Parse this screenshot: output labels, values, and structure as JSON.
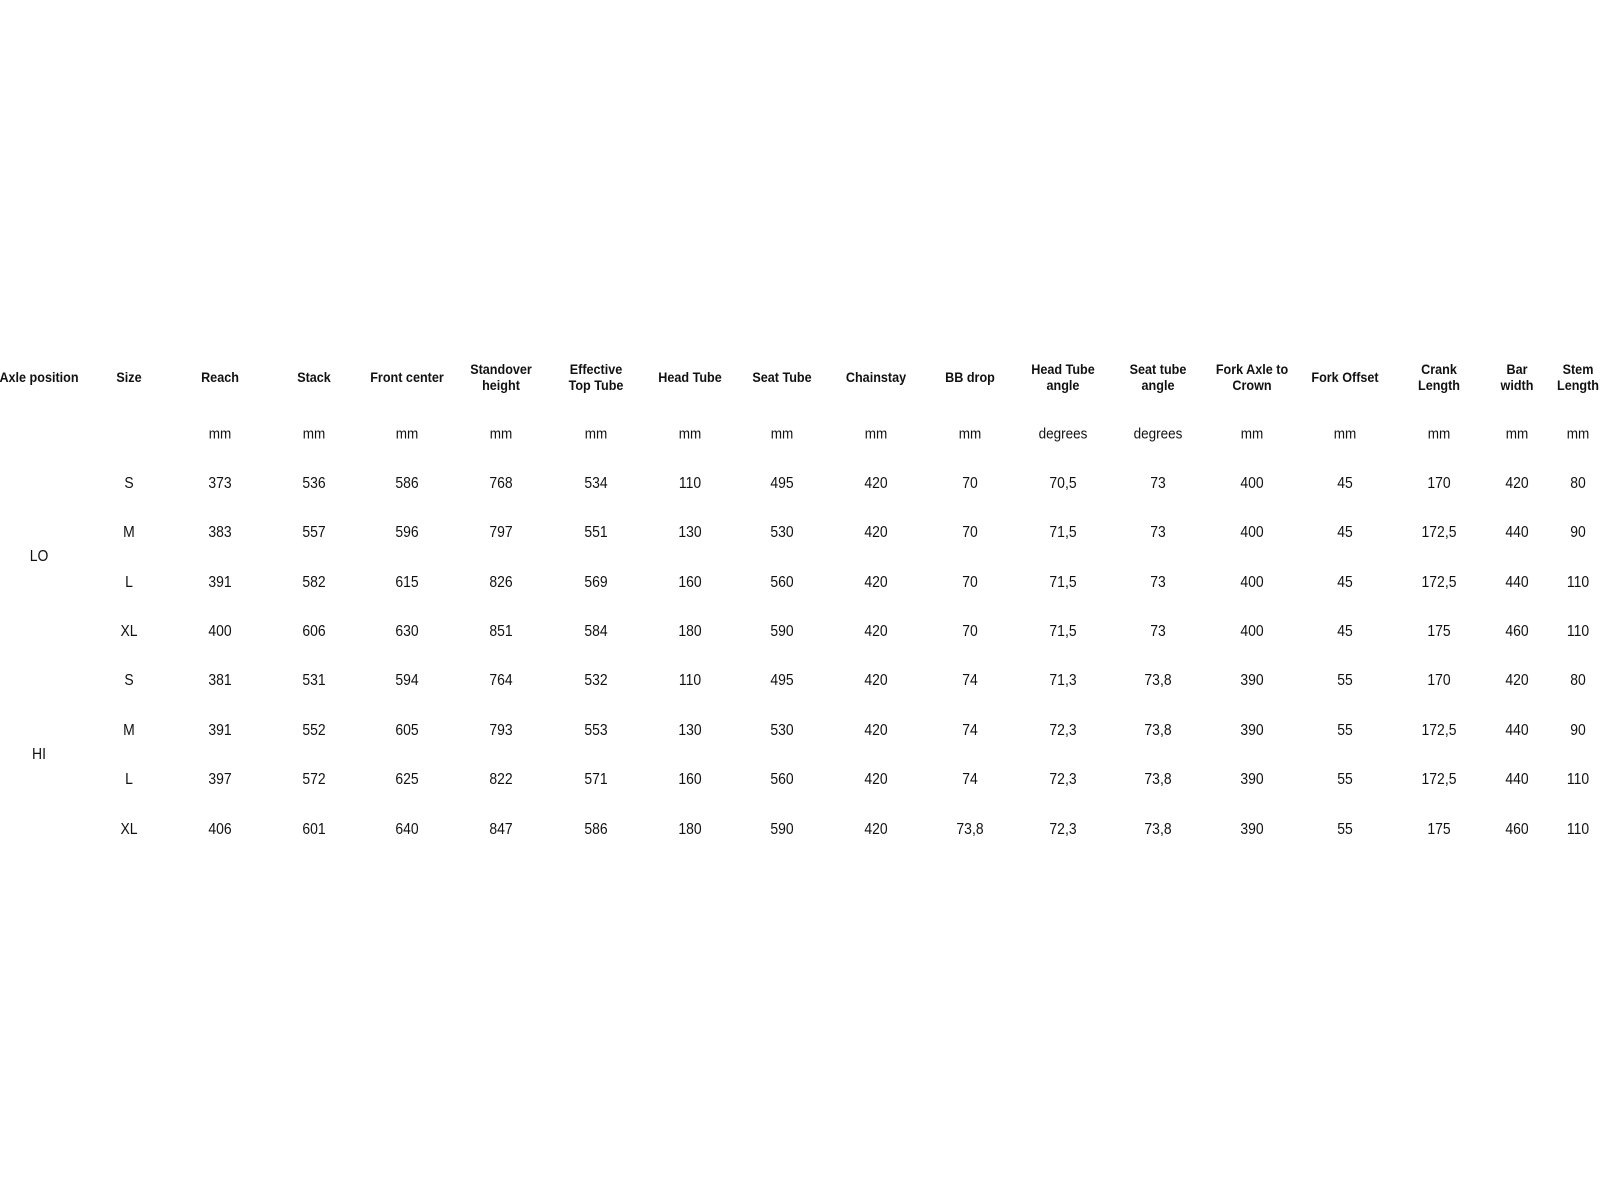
{
  "table": {
    "headers": [
      "Axle position",
      "Size",
      "Reach",
      "Stack",
      "Front center",
      "Standover\nheight",
      "Effective\nTop Tube",
      "Head Tube",
      "Seat Tube",
      "Chainstay",
      "BB drop",
      "Head Tube\nangle",
      "Seat tube\nangle",
      "Fork Axle to\nCrown",
      "Fork Offset",
      "Crank\nLength",
      "Bar\nwidth",
      "Stem\nLength"
    ],
    "units": [
      "",
      "",
      "mm",
      "mm",
      "mm",
      "mm",
      "mm",
      "mm",
      "mm",
      "mm",
      "mm",
      "degrees",
      "degrees",
      "mm",
      "mm",
      "mm",
      "mm",
      "mm"
    ],
    "groups": [
      {
        "axle": "LO",
        "rows": [
          [
            "S",
            "373",
            "536",
            "586",
            "768",
            "534",
            "110",
            "495",
            "420",
            "70",
            "70,5",
            "73",
            "400",
            "45",
            "170",
            "420",
            "80"
          ],
          [
            "M",
            "383",
            "557",
            "596",
            "797",
            "551",
            "130",
            "530",
            "420",
            "70",
            "71,5",
            "73",
            "400",
            "45",
            "172,5",
            "440",
            "90"
          ],
          [
            "L",
            "391",
            "582",
            "615",
            "826",
            "569",
            "160",
            "560",
            "420",
            "70",
            "71,5",
            "73",
            "400",
            "45",
            "172,5",
            "440",
            "110"
          ],
          [
            "XL",
            "400",
            "606",
            "630",
            "851",
            "584",
            "180",
            "590",
            "420",
            "70",
            "71,5",
            "73",
            "400",
            "45",
            "175",
            "460",
            "110"
          ]
        ]
      },
      {
        "axle": "HI",
        "rows": [
          [
            "S",
            "381",
            "531",
            "594",
            "764",
            "532",
            "110",
            "495",
            "420",
            "74",
            "71,3",
            "73,8",
            "390",
            "55",
            "170",
            "420",
            "80"
          ],
          [
            "M",
            "391",
            "552",
            "605",
            "793",
            "553",
            "130",
            "530",
            "420",
            "74",
            "72,3",
            "73,8",
            "390",
            "55",
            "172,5",
            "440",
            "90"
          ],
          [
            "L",
            "397",
            "572",
            "625",
            "822",
            "571",
            "160",
            "560",
            "420",
            "74",
            "72,3",
            "73,8",
            "390",
            "55",
            "172,5",
            "440",
            "110"
          ],
          [
            "XL",
            "406",
            "601",
            "640",
            "847",
            "586",
            "180",
            "590",
            "420",
            "73,8",
            "72,3",
            "73,8",
            "390",
            "55",
            "175",
            "460",
            "110"
          ]
        ]
      }
    ]
  }
}
